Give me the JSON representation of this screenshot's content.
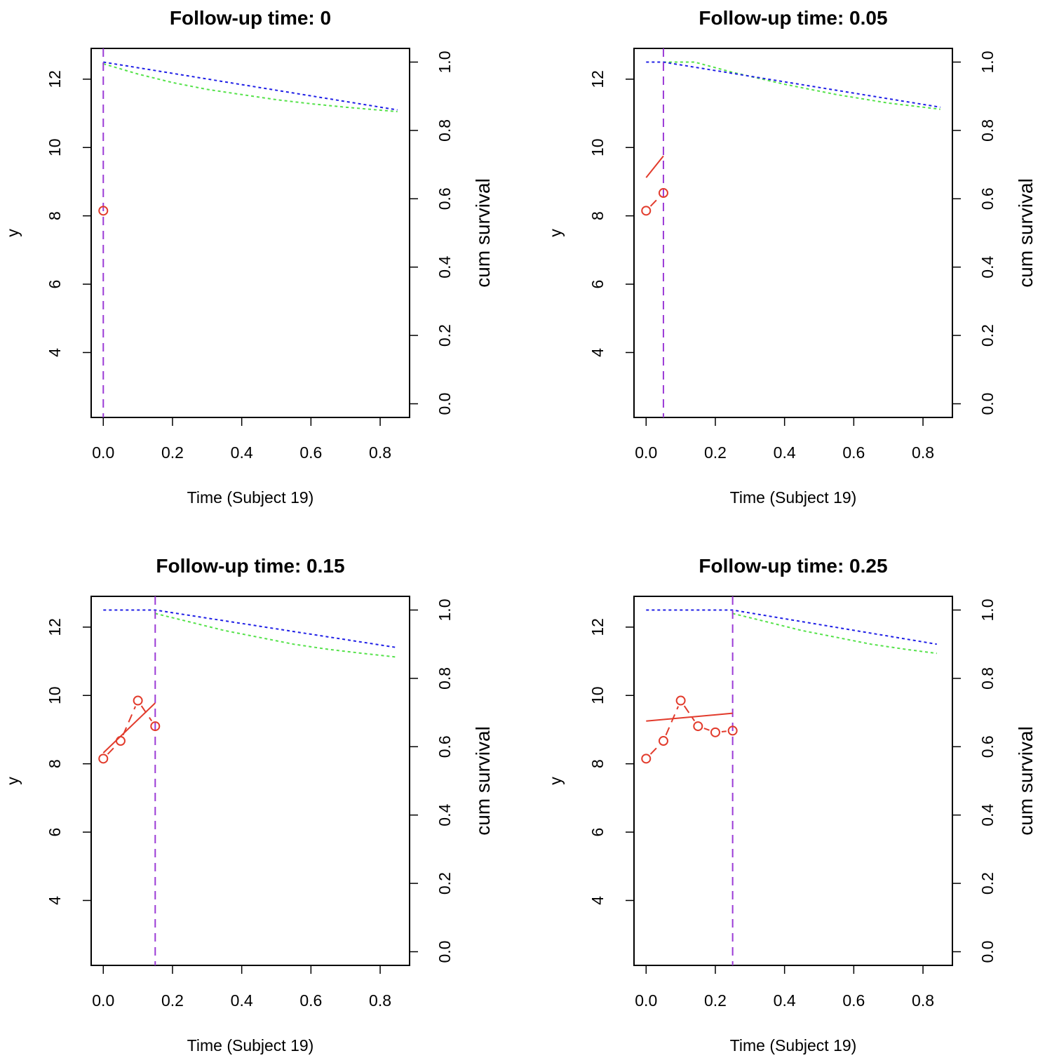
{
  "chart_data": [
    {
      "type": "line",
      "title": "Follow-up time: 0",
      "xlabel": "Time (Subject 19)",
      "ylabel": "y",
      "y2label": "cum survival",
      "xlim": [
        -0.035,
        0.885
      ],
      "ylim": [
        2.1,
        12.9
      ],
      "y2lim": [
        -0.04,
        1.04
      ],
      "xticks": [
        "0.0",
        "0.2",
        "0.4",
        "0.6",
        "0.8"
      ],
      "yticks": [
        "4",
        "6",
        "8",
        "10",
        "12"
      ],
      "y2ticks": [
        "0.0",
        "0.2",
        "0.4",
        "0.6",
        "0.8",
        "1.0"
      ],
      "cutoff": 0,
      "observed": {
        "x": [
          0
        ],
        "y": [
          8.15
        ]
      },
      "fitted": null,
      "survival_blue": {
        "x": [
          0,
          0.85
        ],
        "y": [
          1.0,
          0.86
        ]
      },
      "survival_green": {
        "x": [
          0,
          0.1,
          0.2,
          0.3,
          0.4,
          0.5,
          0.6,
          0.7,
          0.85
        ],
        "y": [
          0.995,
          0.965,
          0.94,
          0.92,
          0.905,
          0.89,
          0.878,
          0.868,
          0.855
        ]
      }
    },
    {
      "type": "line",
      "title": "Follow-up time: 0.05",
      "xlabel": "Time (Subject 19)",
      "ylabel": "y",
      "y2label": "cum survival",
      "xlim": [
        -0.035,
        0.885
      ],
      "ylim": [
        2.1,
        12.9
      ],
      "y2lim": [
        -0.04,
        1.04
      ],
      "xticks": [
        "0.0",
        "0.2",
        "0.4",
        "0.6",
        "0.8"
      ],
      "yticks": [
        "4",
        "6",
        "8",
        "10",
        "12"
      ],
      "y2ticks": [
        "0.0",
        "0.2",
        "0.4",
        "0.6",
        "0.8",
        "1.0"
      ],
      "cutoff": 0.05,
      "observed": {
        "x": [
          0,
          0.05
        ],
        "y": [
          8.15,
          8.67
        ]
      },
      "fitted": {
        "x": [
          0,
          0.05
        ],
        "y": [
          9.12,
          9.75
        ]
      },
      "survival_blue": {
        "x": [
          0,
          0.05,
          0.85
        ],
        "y": [
          1.0,
          1.0,
          0.868
        ]
      },
      "survival_green": {
        "x": [
          0.05,
          0.14,
          0.25,
          0.4,
          0.55,
          0.7,
          0.85
        ],
        "y": [
          1.0,
          1.0,
          0.97,
          0.935,
          0.905,
          0.88,
          0.862
        ]
      }
    },
    {
      "type": "line",
      "title": "Follow-up time: 0.15",
      "xlabel": "Time (Subject 19)",
      "ylabel": "y",
      "y2label": "cum survival",
      "xlim": [
        -0.035,
        0.885
      ],
      "ylim": [
        2.1,
        12.9
      ],
      "y2lim": [
        -0.04,
        1.04
      ],
      "xticks": [
        "0.0",
        "0.2",
        "0.4",
        "0.6",
        "0.8"
      ],
      "yticks": [
        "4",
        "6",
        "8",
        "10",
        "12"
      ],
      "y2ticks": [
        "0.0",
        "0.2",
        "0.4",
        "0.6",
        "0.8",
        "1.0"
      ],
      "cutoff": 0.15,
      "observed": {
        "x": [
          0,
          0.05,
          0.1,
          0.15
        ],
        "y": [
          8.15,
          8.67,
          9.85,
          9.1
        ]
      },
      "fitted": {
        "x": [
          0,
          0.15
        ],
        "y": [
          8.32,
          9.78
        ]
      },
      "survival_blue": {
        "x": [
          0,
          0.15,
          0.85
        ],
        "y": [
          1.0,
          1.0,
          0.89
        ]
      },
      "survival_green": {
        "x": [
          0.15,
          0.25,
          0.35,
          0.45,
          0.55,
          0.65,
          0.75,
          0.85
        ],
        "y": [
          0.99,
          0.965,
          0.94,
          0.92,
          0.9,
          0.885,
          0.873,
          0.862
        ]
      }
    },
    {
      "type": "line",
      "title": "Follow-up time: 0.25",
      "xlabel": "Time (Subject 19)",
      "ylabel": "y",
      "y2label": "cum survival",
      "xlim": [
        -0.035,
        0.885
      ],
      "ylim": [
        2.1,
        12.9
      ],
      "y2lim": [
        -0.04,
        1.04
      ],
      "xticks": [
        "0.0",
        "0.2",
        "0.4",
        "0.6",
        "0.8"
      ],
      "yticks": [
        "4",
        "6",
        "8",
        "10",
        "12"
      ],
      "y2ticks": [
        "0.0",
        "0.2",
        "0.4",
        "0.6",
        "0.8",
        "1.0"
      ],
      "cutoff": 0.25,
      "observed": {
        "x": [
          0,
          0.05,
          0.1,
          0.15,
          0.2,
          0.25
        ],
        "y": [
          8.15,
          8.67,
          9.85,
          9.1,
          8.92,
          8.97
        ]
      },
      "fitted": {
        "x": [
          0,
          0.25
        ],
        "y": [
          9.25,
          9.48
        ]
      },
      "survival_blue": {
        "x": [
          0,
          0.25,
          0.84
        ],
        "y": [
          1.0,
          1.0,
          0.9
        ]
      },
      "survival_green": {
        "x": [
          0.25,
          0.35,
          0.45,
          0.55,
          0.65,
          0.75,
          0.84
        ],
        "y": [
          0.99,
          0.965,
          0.94,
          0.92,
          0.9,
          0.885,
          0.873
        ]
      }
    }
  ]
}
